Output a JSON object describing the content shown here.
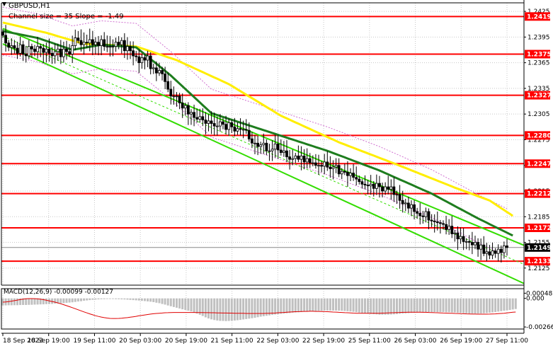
{
  "chart_data": {
    "type": "candlestick",
    "symbol_title": "GBPUSD,H1",
    "channel_label": "Channel size = 35 Slope = -1.49",
    "current_price": 1.2149,
    "price_ylim": [
      1.2105,
      1.2435
    ],
    "price_ticks": [
      "1.2425",
      "1.2395",
      "1.2365",
      "1.2335",
      "1.2305",
      "1.2275",
      "1.2245",
      "1.2215",
      "1.2185",
      "1.2155",
      "1.2125"
    ],
    "x_labels": [
      "18 Sep 2023",
      "18 Sep 19:00",
      "19 Sep 11:00",
      "20 Sep 03:00",
      "20 Sep 19:00",
      "21 Sep 11:00",
      "22 Sep 03:00",
      "22 Sep 19:00",
      "25 Sep 11:00",
      "26 Sep 03:00",
      "26 Sep 19:00",
      "27 Sep 11:00"
    ],
    "levels": [
      {
        "label": "1.2419",
        "value": 1.2419
      },
      {
        "label": "1.2375",
        "value": 1.2375
      },
      {
        "label": "1.2327",
        "value": 1.2327
      },
      {
        "label": "1.2280",
        "value": 1.228
      },
      {
        "label": "1.2247",
        "value": 1.2247
      },
      {
        "label": "1.2212",
        "value": 1.2212
      },
      {
        "label": "1.2172",
        "value": 1.2172
      },
      {
        "label": "1.2133",
        "value": 1.2133
      }
    ],
    "candles_close": [
      1.2397,
      1.2388,
      1.2383,
      1.2385,
      1.2382,
      1.2376,
      1.2386,
      1.2375,
      1.2373,
      1.2384,
      1.2381,
      1.2378,
      1.2384,
      1.2382,
      1.2377,
      1.2381,
      1.2376,
      1.2373,
      1.2378,
      1.2381,
      1.2372,
      1.2381,
      1.2378,
      1.2375,
      1.2385,
      1.2394,
      1.2391,
      1.2386,
      1.2389,
      1.2388,
      1.2392,
      1.2386,
      1.2389,
      1.2385,
      1.2392,
      1.2384,
      1.2384,
      1.2384,
      1.2384,
      1.2389,
      1.2386,
      1.2391,
      1.2379,
      1.2384,
      1.2379,
      1.2373,
      1.2372,
      1.2365,
      1.2371,
      1.2368,
      1.2373,
      1.2358,
      1.2359,
      1.2353,
      1.2356,
      1.2352,
      1.2343,
      1.2334,
      1.2326,
      1.2326,
      1.2326,
      1.2318,
      1.2312,
      1.2315,
      1.2305,
      1.2307,
      1.2301,
      1.2299,
      1.2302,
      1.2298,
      1.2294,
      1.2297,
      1.2294,
      1.2291,
      1.2291,
      1.2296,
      1.2293,
      1.2287,
      1.2295,
      1.229,
      1.2285,
      1.2288,
      1.2287,
      1.2287,
      1.2286,
      1.2276,
      1.2271,
      1.2271,
      1.2267,
      1.2269,
      1.2271,
      1.2262,
      1.2262,
      1.2264,
      1.227,
      1.2263,
      1.226,
      1.2262,
      1.2255,
      1.2252,
      1.2253,
      1.2256,
      1.2252,
      1.2256,
      1.2249,
      1.2253,
      1.2248,
      1.2248,
      1.2245,
      1.2245,
      1.2244,
      1.2249,
      1.2243,
      1.2241,
      1.2243,
      1.2245,
      1.2235,
      1.2238,
      1.2237,
      1.2233,
      1.2236,
      1.2231,
      1.2229,
      1.2226,
      1.2223,
      1.2222,
      1.2221,
      1.2223,
      1.2218,
      1.2224,
      1.222,
      1.2215,
      1.222,
      1.2217,
      1.222,
      1.2211,
      1.2211,
      1.2204,
      1.22,
      1.2201,
      1.2195,
      1.2199,
      1.2191,
      1.2189,
      1.2186,
      1.2185,
      1.2191,
      1.2181,
      1.218,
      1.2179,
      1.2178,
      1.2177,
      1.2176,
      1.217,
      1.2174,
      1.2165,
      1.2166,
      1.2159,
      1.2162,
      1.2156,
      1.2156,
      1.2155,
      1.2152,
      1.2155,
      1.2147,
      1.2152,
      1.2142,
      1.2144,
      1.214,
      1.2145,
      1.2142,
      1.2147,
      1.2143,
      1.2151,
      1.2149
    ],
    "ma_yellow": [
      {
        "i": 0,
        "v": 1.2412
      },
      {
        "i": 15,
        "v": 1.24
      },
      {
        "i": 28,
        "v": 1.2387
      },
      {
        "i": 36,
        "v": 1.2386
      },
      {
        "i": 46,
        "v": 1.2384
      },
      {
        "i": 60,
        "v": 1.2368
      },
      {
        "i": 78,
        "v": 1.234
      },
      {
        "i": 96,
        "v": 1.2303
      },
      {
        "i": 116,
        "v": 1.2272
      },
      {
        "i": 136,
        "v": 1.2246
      },
      {
        "i": 156,
        "v": 1.2219
      },
      {
        "i": 168,
        "v": 1.2204
      },
      {
        "i": 176,
        "v": 1.2186
      }
    ],
    "ma_green": [
      {
        "i": 0,
        "v": 1.2402
      },
      {
        "i": 12,
        "v": 1.2394
      },
      {
        "i": 24,
        "v": 1.238
      },
      {
        "i": 34,
        "v": 1.2386
      },
      {
        "i": 46,
        "v": 1.2383
      },
      {
        "i": 58,
        "v": 1.235
      },
      {
        "i": 72,
        "v": 1.2306
      },
      {
        "i": 92,
        "v": 1.2284
      },
      {
        "i": 112,
        "v": 1.2262
      },
      {
        "i": 130,
        "v": 1.2239
      },
      {
        "i": 148,
        "v": 1.2212
      },
      {
        "i": 164,
        "v": 1.2183
      },
      {
        "i": 176,
        "v": 1.2163
      }
    ],
    "channel_upper": [
      {
        "i": 0,
        "v": 1.2405
      },
      {
        "i": 176,
        "v": 1.2157
      }
    ],
    "channel_lower": [
      {
        "i": 0,
        "v": 1.2387
      },
      {
        "i": 176,
        "v": 1.2113
      }
    ],
    "macd": {
      "label": "MACD(12,26,9) -0.00099 -0.00127",
      "ylim": [
        -0.00285,
        0.0009
      ],
      "ticks": [
        "0.00048",
        "0.000",
        "-0.00266"
      ],
      "histogram": [
        -0.00065,
        -0.00065,
        -0.00064,
        -0.00064,
        -0.00063,
        -0.00063,
        -0.00062,
        -0.00061,
        -0.00061,
        -0.0006,
        -0.00059,
        -0.00058,
        -0.00057,
        -0.00056,
        -0.00055,
        -0.00053,
        -0.00052,
        -0.00051,
        -0.00049,
        -0.00047,
        -0.00046,
        -0.00044,
        -0.00041,
        -0.00039,
        -0.00036,
        -0.00033,
        -0.00029,
        -0.00026,
        -0.00022,
        -0.00019,
        -0.00016,
        -0.00013,
        -0.00011,
        -9e-05,
        -8e-05,
        -7e-05,
        -6e-05,
        -6e-05,
        -6e-05,
        -7e-05,
        -8e-05,
        -9e-05,
        -0.0001,
        -0.00012,
        -0.00014,
        -0.00016,
        -0.00018,
        -0.0002,
        -0.00023,
        -0.00025,
        -0.00028,
        -0.00031,
        -0.00035,
        -0.0004,
        -0.00045,
        -0.00052,
        -0.00058,
        -0.00066,
        -0.00073,
        -0.0008,
        -0.00087,
        -0.00094,
        -0.00101,
        -0.00107,
        -0.00114,
        -0.00121,
        -0.0013,
        -0.00141,
        -0.00152,
        -0.00164,
        -0.00176,
        -0.00187,
        -0.00195,
        -0.00201,
        -0.00206,
        -0.00209,
        -0.0021,
        -0.00211,
        -0.0021,
        -0.00208,
        -0.00206,
        -0.00203,
        -0.002,
        -0.00196,
        -0.00192,
        -0.00188,
        -0.00184,
        -0.0018,
        -0.00175,
        -0.0017,
        -0.00166,
        -0.00162,
        -0.00158,
        -0.00154,
        -0.0015,
        -0.00147,
        -0.00144,
        -0.00141,
        -0.00138,
        -0.00136,
        -0.00133,
        -0.00131,
        -0.00129,
        -0.00127,
        -0.00124,
        -0.00122,
        -0.0012,
        -0.00118,
        -0.00117,
        -0.00116,
        -0.00115,
        -0.00114,
        -0.00113,
        -0.00113,
        -0.00113,
        -0.00113,
        -0.00114,
        -0.00115,
        -0.00117,
        -0.00119,
        -0.00122,
        -0.00125,
        -0.00128,
        -0.00132,
        -0.00136,
        -0.00139,
        -0.00142,
        -0.00145,
        -0.00147,
        -0.00149,
        -0.00151,
        -0.00152,
        -0.00152,
        -0.00151,
        -0.0015,
        -0.00148,
        -0.00146,
        -0.00143,
        -0.00141,
        -0.00139,
        -0.00137,
        -0.00135,
        -0.00134,
        -0.00132,
        -0.00131,
        -0.0013,
        -0.00129,
        -0.00128,
        -0.00127,
        -0.00127,
        -0.00127,
        -0.00127,
        -0.00127,
        -0.00128,
        -0.00129,
        -0.0013,
        -0.00131,
        -0.00133,
        -0.00135,
        -0.00137,
        -0.00139,
        -0.0014,
        -0.00141,
        -0.00141,
        -0.00141,
        -0.0014,
        -0.00138,
        -0.00136,
        -0.00133,
        -0.0013,
        -0.00127,
        -0.00123,
        -0.00119,
        -0.00115,
        -0.00111,
        -0.00107,
        -0.00103,
        -0.00099
      ],
      "signal": [
        -0.00035,
        -0.00033,
        -0.0003,
        -0.00026,
        -0.00021,
        -0.00016,
        -0.00011,
        -7e-05,
        -4e-05,
        -2e-05,
        -2e-05,
        -3e-05,
        -5e-05,
        -8e-05,
        -0.00012,
        -0.00017,
        -0.00023,
        -0.00029,
        -0.00035,
        -0.00042,
        -0.0005,
        -0.00059,
        -0.00068,
        -0.00077,
        -0.00086,
        -0.00096,
        -0.00106,
        -0.00116,
        -0.00126,
        -0.00135,
        -0.00144,
        -0.00153,
        -0.00161,
        -0.00168,
        -0.00174,
        -0.00179,
        -0.00183,
        -0.00186,
        -0.00187,
        -0.00187,
        -0.00186,
        -0.00185,
        -0.00182,
        -0.00179,
        -0.00175,
        -0.00171,
        -0.00167,
        -0.00162,
        -0.00158,
        -0.00154,
        -0.0015,
        -0.00146,
        -0.00143,
        -0.0014,
        -0.00138,
        -0.00136,
        -0.00134,
        -0.00133,
        -0.00132,
        -0.00131,
        -0.00131,
        -0.00131,
        -0.00131,
        -0.00131,
        -0.00131,
        -0.00131,
        -0.00131,
        -0.00132,
        -0.00132,
        -0.00132,
        -0.00133,
        -0.00133,
        -0.00134,
        -0.00134,
        -0.00135,
        -0.00135,
        -0.00136,
        -0.00136,
        -0.00137,
        -0.00137,
        -0.00138,
        -0.00138,
        -0.00139,
        -0.00139,
        -0.0014,
        -0.0014,
        -0.0014,
        -0.0014,
        -0.0014,
        -0.0014,
        -0.0014,
        -0.00139,
        -0.00138,
        -0.00137,
        -0.00136,
        -0.00134,
        -0.00132,
        -0.00131,
        -0.00129,
        -0.00127,
        -0.00126,
        -0.00124,
        -0.00123,
        -0.00122,
        -0.00121,
        -0.00121,
        -0.0012,
        -0.0012,
        -0.00121,
        -0.00121,
        -0.00122,
        -0.00123,
        -0.00124,
        -0.00125,
        -0.00127,
        -0.00128,
        -0.0013,
        -0.00131,
        -0.00133,
        -0.00134,
        -0.00135,
        -0.00137,
        -0.00138,
        -0.00138,
        -0.00139,
        -0.00139,
        -0.00139,
        -0.00139,
        -0.00139,
        -0.00139,
        -0.00138,
        -0.00137,
        -0.00136,
        -0.00135,
        -0.00134,
        -0.00133,
        -0.00132,
        -0.00131,
        -0.0013,
        -0.0013,
        -0.00129,
        -0.00129,
        -0.00129,
        -0.00129,
        -0.00129,
        -0.0013,
        -0.0013,
        -0.00131,
        -0.00132,
        -0.00133,
        -0.00134,
        -0.00135,
        -0.00136,
        -0.00137,
        -0.00138,
        -0.00139,
        -0.0014,
        -0.00141,
        -0.00142,
        -0.00143,
        -0.00144,
        -0.00145,
        -0.00146,
        -0.00146,
        -0.00147,
        -0.00147,
        -0.00147,
        -0.00147,
        -0.00146,
        -0.00145,
        -0.00144,
        -0.00142,
        -0.0014,
        -0.00138,
        -0.00135,
        -0.00132,
        -0.00129,
        -0.00127
      ]
    },
    "colors": {
      "level_line": "#ff0000",
      "bull_body": "#ffffff",
      "candle": "#000000",
      "ma_yellow": "#ffee00",
      "ma_green": "#1e7d1e",
      "channel": "#33dd00",
      "envelope": "#d070d0",
      "macd_hist": "#c0c0c0",
      "macd_signal": "#e00000",
      "current_price_bg": "#000000"
    }
  }
}
